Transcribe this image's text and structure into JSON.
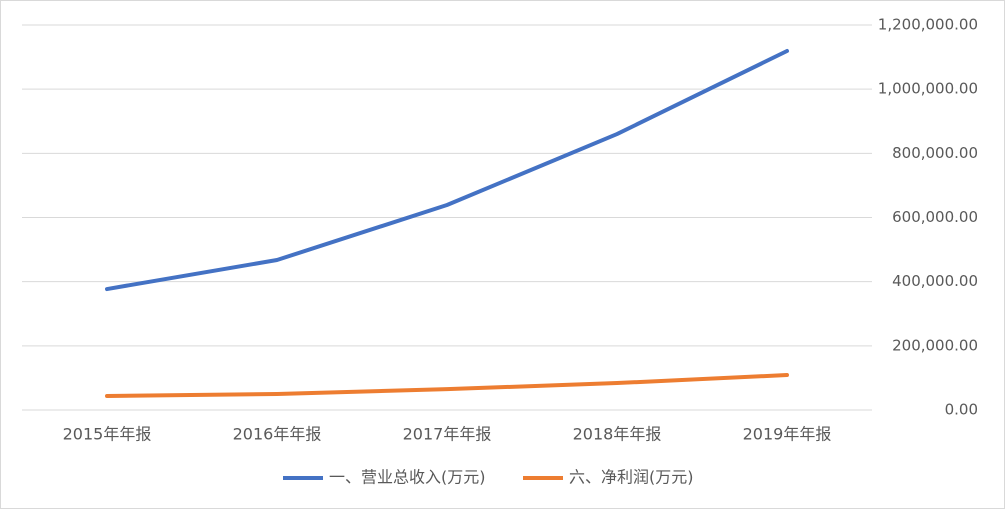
{
  "chart_data": {
    "type": "line",
    "categories": [
      "2015年年报",
      "2016年年报",
      "2017年年报",
      "2018年年报",
      "2019年年报"
    ],
    "series": [
      {
        "name": "一、营业总收入(万元)",
        "color": "#4472c4",
        "values": [
          377000,
          467500,
          639000,
          860000,
          1119000
        ]
      },
      {
        "name": "六、净利润(万元)",
        "color": "#ed7d31",
        "values": [
          43600,
          50000,
          65000,
          84000,
          109000
        ]
      }
    ],
    "ylim": [
      0,
      1200000
    ],
    "yticks": [
      {
        "value": 0,
        "label": "0.00"
      },
      {
        "value": 200000,
        "label": "200,000.00"
      },
      {
        "value": 400000,
        "label": "400,000.00"
      },
      {
        "value": 600000,
        "label": "600,000.00"
      },
      {
        "value": 800000,
        "label": "800,000.00"
      },
      {
        "value": 1000000,
        "label": "1,000,000.00"
      },
      {
        "value": 1200000,
        "label": "1,200,000.00"
      }
    ],
    "grid": true,
    "y_axis_side": "right",
    "legend": "bottom"
  }
}
